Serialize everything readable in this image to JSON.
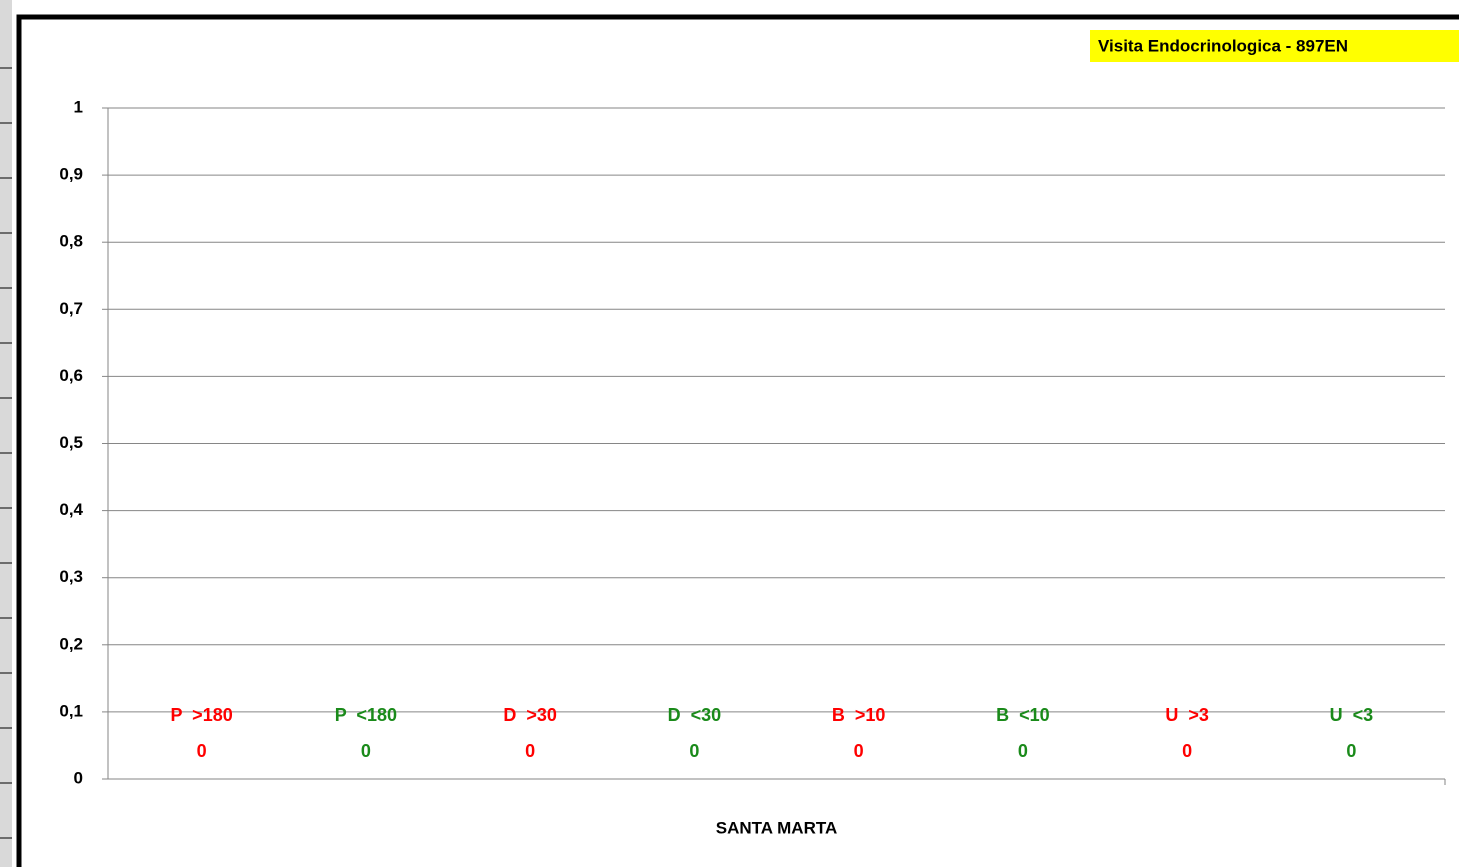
{
  "chart_data": {
    "type": "bar",
    "title": "Visita Endocrinologica - 897EN",
    "categories": [
      "SANTA MARTA"
    ],
    "series": [
      {
        "name": "P  >180",
        "color": "#ff0000",
        "values": [
          0
        ]
      },
      {
        "name": "P  <180",
        "color": "#1a8a1a",
        "values": [
          0
        ]
      },
      {
        "name": "D  >30",
        "color": "#ff0000",
        "values": [
          0
        ]
      },
      {
        "name": "D  <30",
        "color": "#1a8a1a",
        "values": [
          0
        ]
      },
      {
        "name": "B  >10",
        "color": "#ff0000",
        "values": [
          0
        ]
      },
      {
        "name": "B  <10",
        "color": "#1a8a1a",
        "values": [
          0
        ]
      },
      {
        "name": "U  >3",
        "color": "#ff0000",
        "values": [
          0
        ]
      },
      {
        "name": "U  <3",
        "color": "#1a8a1a",
        "values": [
          0
        ]
      }
    ],
    "ylim": [
      0,
      1
    ],
    "yticks": [
      0,
      {
        "value": 0.1,
        "label": "0,1"
      },
      {
        "value": 0.2,
        "label": "0,2"
      },
      {
        "value": 0.3,
        "label": "0,3"
      },
      {
        "value": 0.4,
        "label": "0,4"
      },
      {
        "value": 0.5,
        "label": "0,5"
      },
      {
        "value": 0.6,
        "label": "0,6"
      },
      {
        "value": 0.7,
        "label": "0,7"
      },
      {
        "value": 0.8,
        "label": "0,8"
      },
      {
        "value": 0.9,
        "label": "0,9"
      },
      1
    ],
    "grid": true
  }
}
